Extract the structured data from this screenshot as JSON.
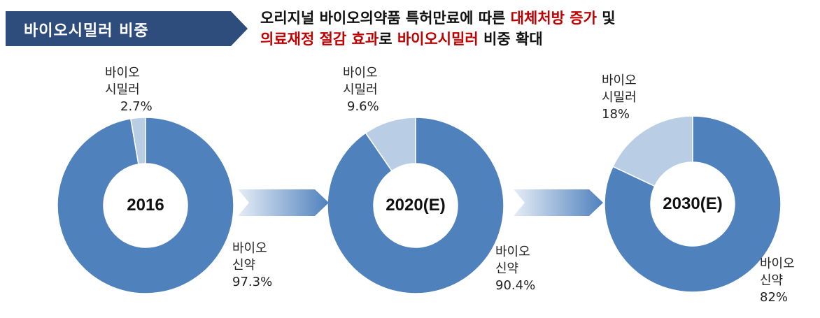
{
  "header": {
    "label": "바이오시밀러 비중",
    "line1": [
      {
        "text": "오리지널 바이오의약품 특허만료에 따른 ",
        "hl": false
      },
      {
        "text": "대체처방 증가",
        "hl": true
      },
      {
        "text": " 및",
        "hl": false
      }
    ],
    "line2": [
      {
        "text": "의료재정 절감 효과",
        "hl": true
      },
      {
        "text": "로 ",
        "hl": false
      },
      {
        "text": "바이오시밀러",
        "hl": true
      },
      {
        "text": " 비중 확대",
        "hl": false
      }
    ]
  },
  "colors": {
    "banner": "#2f4d7c",
    "highlight": "#c00000",
    "biologic": "#4f81bd",
    "biosimilar": "#b9cde5",
    "arrow_dark": "#4f81bd",
    "arrow_light": "#e6edf6"
  },
  "chart_data": {
    "type": "donut",
    "charts": [
      {
        "center_label": "2016",
        "slices": [
          {
            "name_lines": [
              "바이오",
              "시밀러"
            ],
            "value_text": "2.7%",
            "value": 2.7
          },
          {
            "name_lines": [
              "바이오",
              "신약"
            ],
            "value_text": "97.3%",
            "value": 97.3
          }
        ]
      },
      {
        "center_label": "2020(E)",
        "slices": [
          {
            "name_lines": [
              "바이오",
              "시밀러"
            ],
            "value_text": "9.6%",
            "value": 9.6
          },
          {
            "name_lines": [
              "바이오",
              "신약"
            ],
            "value_text": "90.4%",
            "value": 90.4
          }
        ]
      },
      {
        "center_label": "2030(E)",
        "slices": [
          {
            "name_lines": [
              "바이오",
              "시밀러"
            ],
            "value_text": "18%",
            "value": 18
          },
          {
            "name_lines": [
              "바이오",
              "신약"
            ],
            "value_text": "82%",
            "value": 82
          }
        ]
      }
    ]
  }
}
